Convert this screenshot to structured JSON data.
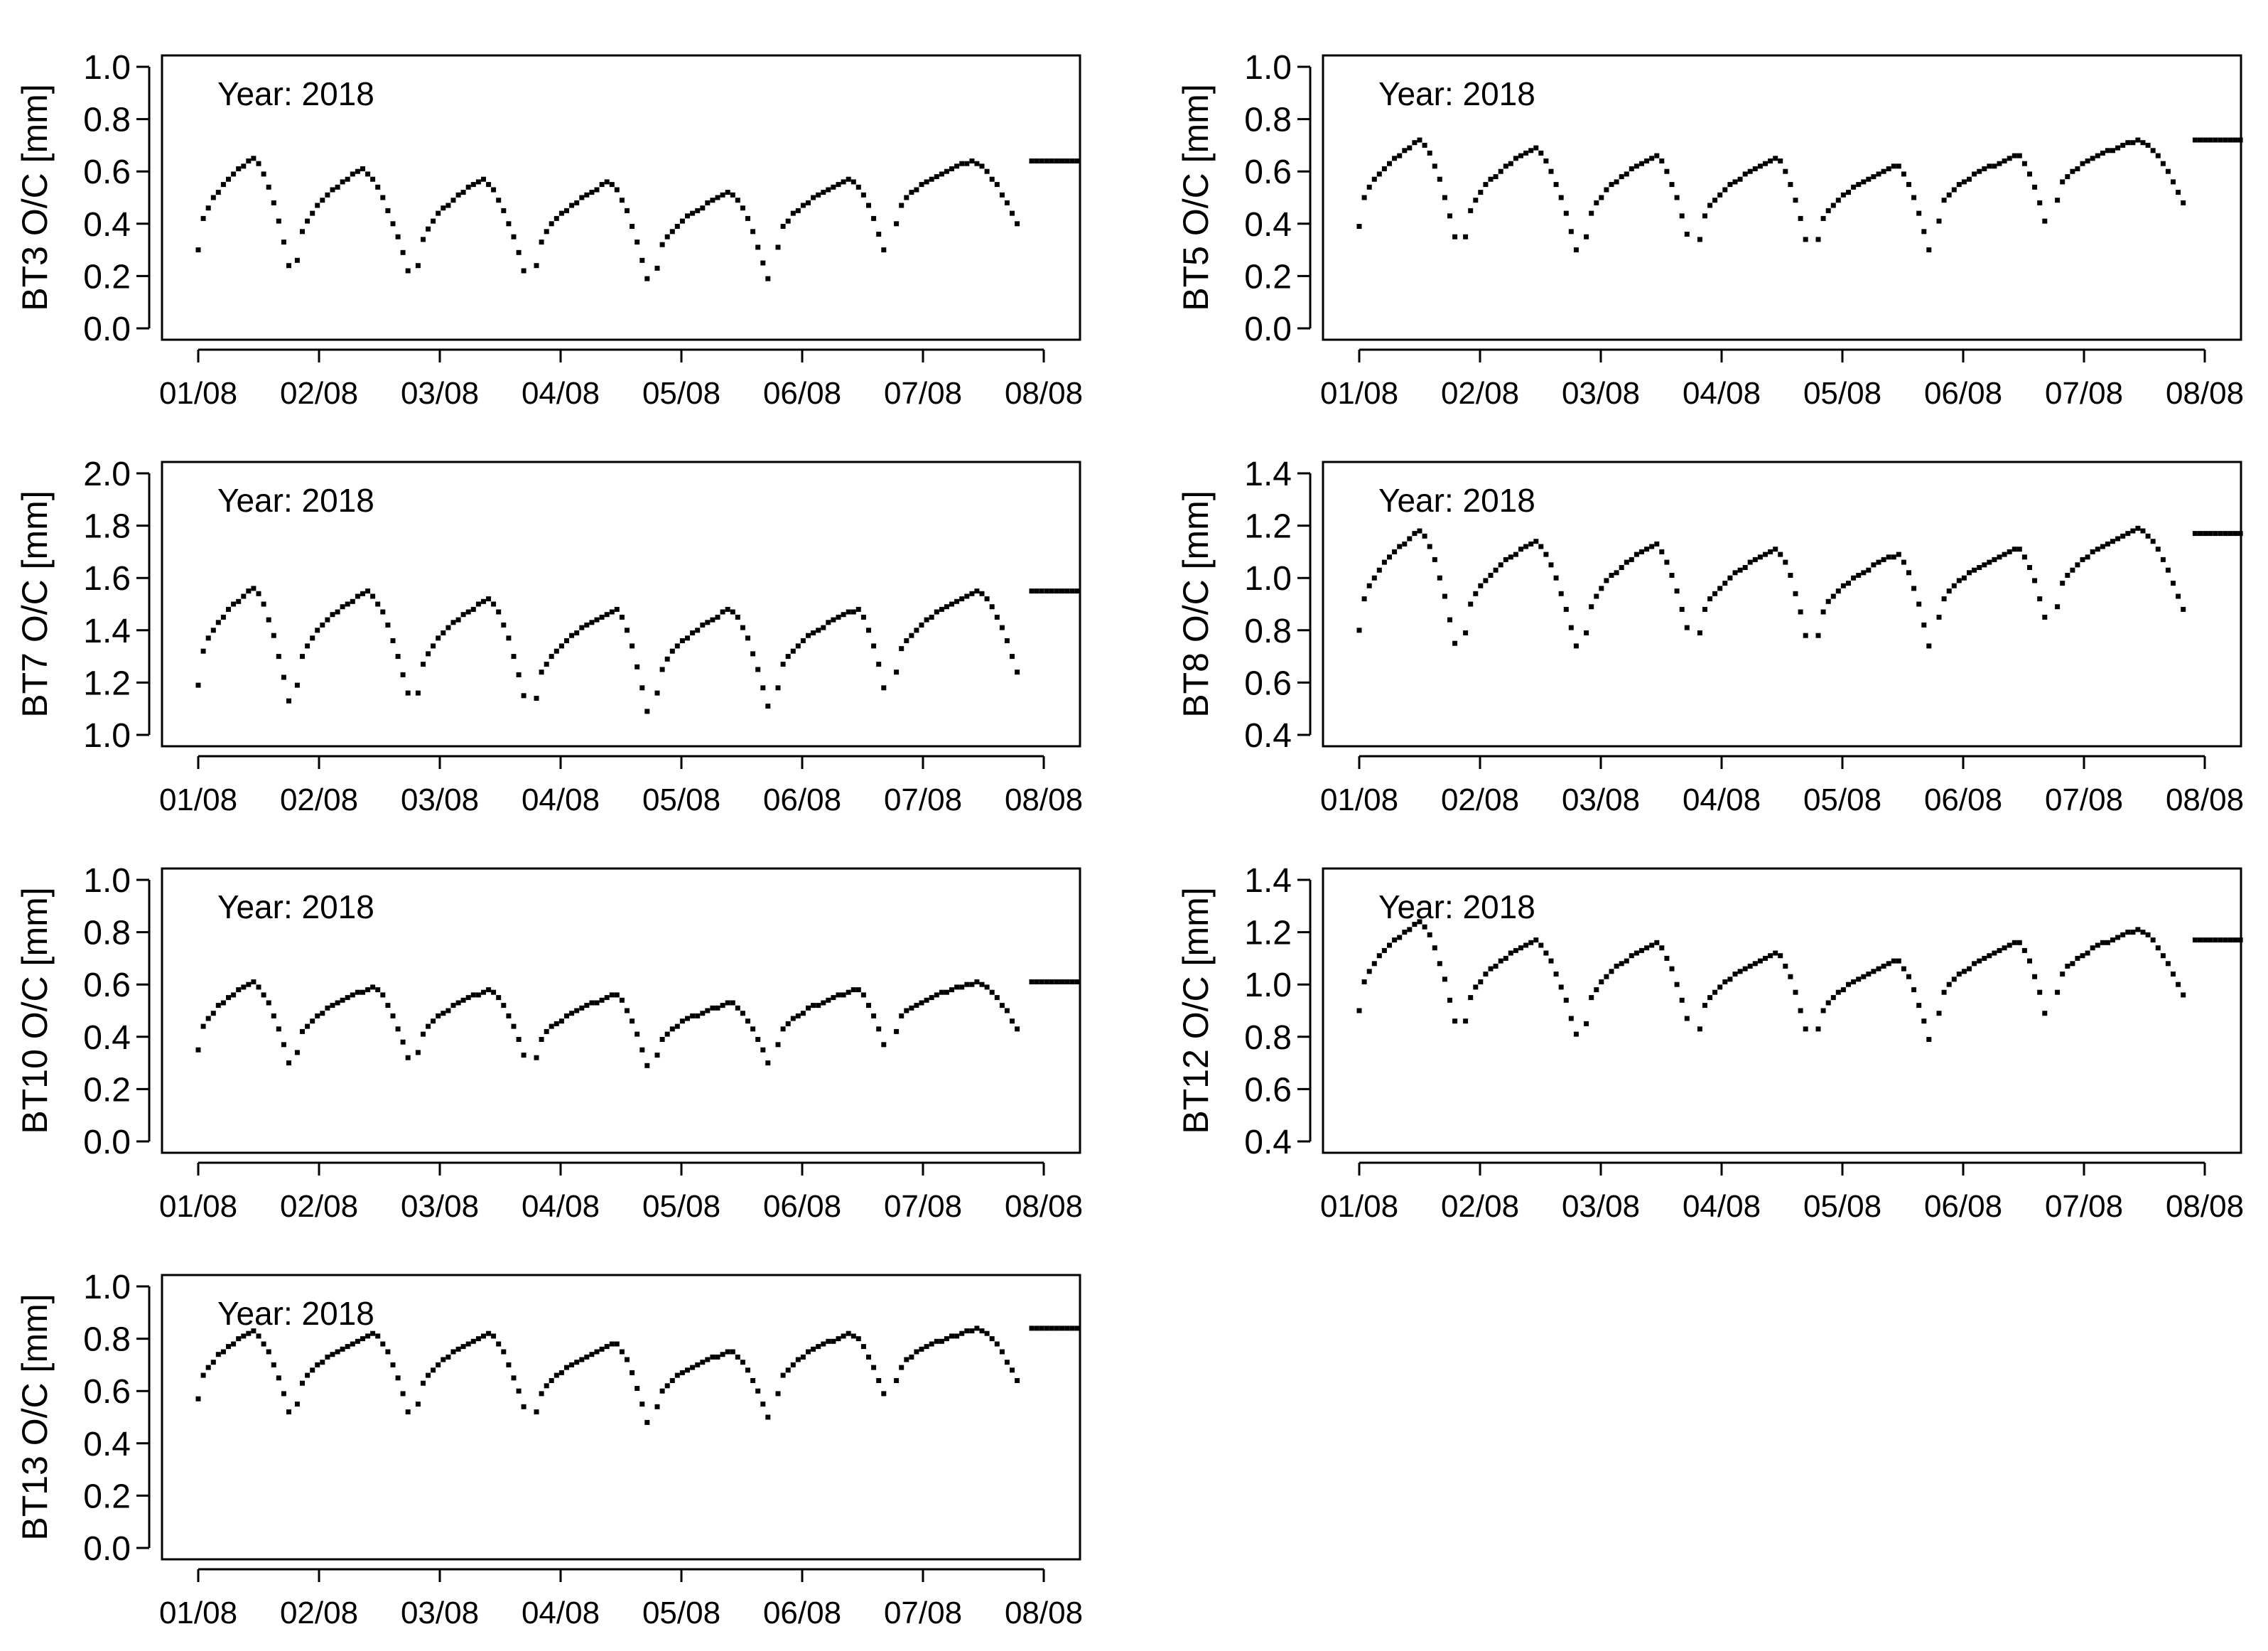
{
  "chart_data": [
    {
      "type": "scatter",
      "ylabel": "BT3 O/C [mm]",
      "annotation": "Year: 2018",
      "x_ticks": [
        "01/08",
        "02/08",
        "03/08",
        "04/08",
        "05/08",
        "06/08",
        "07/08",
        "08/08"
      ],
      "x_unit": "day",
      "x_range": [
        0.7,
        8.3
      ],
      "ylim": [
        0.0,
        1.0
      ],
      "y_ticks": [
        "0.0",
        "0.2",
        "0.4",
        "0.6",
        "0.8",
        "1.0"
      ],
      "grid": false,
      "series": [
        {
          "cycles": [
            {
              "start": 1.0,
              "peak_time": 1.45,
              "trough_time": 1.75,
              "peak": 0.65,
              "trough": 0.24
            },
            {
              "start": 1.82,
              "peak_time": 2.35,
              "trough_time": 2.75,
              "peak": 0.61,
              "trough": 0.2
            },
            {
              "start": 2.82,
              "peak_time": 3.35,
              "trough_time": 3.72,
              "peak": 0.57,
              "trough": 0.18
            },
            {
              "start": 3.8,
              "peak_time": 4.4,
              "trough_time": 4.72,
              "peak": 0.56,
              "trough": 0.18
            },
            {
              "start": 4.8,
              "peak_time": 5.4,
              "trough_time": 5.72,
              "peak": 0.52,
              "trough": 0.18
            },
            {
              "start": 5.8,
              "peak_time": 6.4,
              "trough_time": 6.7,
              "peak": 0.57,
              "trough": 0.26
            },
            {
              "start": 6.78,
              "peak_time": 7.4,
              "trough_time": 7.82,
              "peak": 0.64,
              "trough": 0.36
            },
            {
              "start": 7.9,
              "peak_time": 8.3,
              "trough_time": 8.3,
              "peak": 0.64,
              "trough": 0.64
            }
          ]
        }
      ]
    },
    {
      "type": "scatter",
      "ylabel": "BT5 O/C [mm]",
      "annotation": "Year: 2018",
      "x_ticks": [
        "01/08",
        "02/08",
        "03/08",
        "04/08",
        "05/08",
        "06/08",
        "07/08",
        "08/08"
      ],
      "x_unit": "day",
      "x_range": [
        0.7,
        8.3
      ],
      "ylim": [
        0.0,
        1.0
      ],
      "y_ticks": [
        "0.0",
        "0.2",
        "0.4",
        "0.6",
        "0.8",
        "1.0"
      ],
      "grid": false,
      "series": [
        {
          "cycles": [
            {
              "start": 1.0,
              "peak_time": 1.5,
              "trough_time": 1.8,
              "peak": 0.72,
              "trough": 0.33
            },
            {
              "start": 1.88,
              "peak_time": 2.45,
              "trough_time": 2.8,
              "peak": 0.69,
              "trough": 0.29
            },
            {
              "start": 2.88,
              "peak_time": 3.45,
              "trough_time": 3.75,
              "peak": 0.66,
              "trough": 0.29
            },
            {
              "start": 3.82,
              "peak_time": 4.45,
              "trough_time": 4.72,
              "peak": 0.65,
              "trough": 0.29
            },
            {
              "start": 4.8,
              "peak_time": 5.45,
              "trough_time": 5.72,
              "peak": 0.62,
              "trough": 0.29
            },
            {
              "start": 5.8,
              "peak_time": 6.45,
              "trough_time": 6.7,
              "peak": 0.66,
              "trough": 0.37
            },
            {
              "start": 6.78,
              "peak_time": 7.45,
              "trough_time": 7.85,
              "peak": 0.72,
              "trough": 0.45
            },
            {
              "start": 7.92,
              "peak_time": 8.3,
              "trough_time": 8.3,
              "peak": 0.72,
              "trough": 0.72
            }
          ]
        }
      ]
    },
    {
      "type": "scatter",
      "ylabel": "BT7 O/C [mm]",
      "annotation": "Year: 2018",
      "x_ticks": [
        "01/08",
        "02/08",
        "03/08",
        "04/08",
        "05/08",
        "06/08",
        "07/08",
        "08/08"
      ],
      "x_unit": "day",
      "x_range": [
        0.7,
        8.3
      ],
      "ylim": [
        1.0,
        2.0
      ],
      "y_ticks": [
        "1.0",
        "1.2",
        "1.4",
        "1.6",
        "1.8",
        "2.0"
      ],
      "grid": false,
      "series": [
        {
          "cycles": [
            {
              "start": 1.0,
              "peak_time": 1.45,
              "trough_time": 1.75,
              "peak": 1.56,
              "trough": 1.13
            },
            {
              "start": 1.82,
              "peak_time": 2.4,
              "trough_time": 2.75,
              "peak": 1.55,
              "trough": 1.13
            },
            {
              "start": 2.82,
              "peak_time": 3.4,
              "trough_time": 3.72,
              "peak": 1.52,
              "trough": 1.1
            },
            {
              "start": 3.8,
              "peak_time": 4.45,
              "trough_time": 4.72,
              "peak": 1.48,
              "trough": 1.08
            },
            {
              "start": 4.8,
              "peak_time": 5.4,
              "trough_time": 5.72,
              "peak": 1.48,
              "trough": 1.1
            },
            {
              "start": 5.8,
              "peak_time": 6.45,
              "trough_time": 6.7,
              "peak": 1.48,
              "trough": 1.13
            },
            {
              "start": 6.78,
              "peak_time": 7.45,
              "trough_time": 7.82,
              "peak": 1.55,
              "trough": 1.18
            },
            {
              "start": 7.9,
              "peak_time": 8.3,
              "trough_time": 8.3,
              "peak": 1.55,
              "trough": 1.55
            }
          ]
        }
      ]
    },
    {
      "type": "scatter",
      "ylabel": "BT8 O/C [mm]",
      "annotation": "Year: 2018",
      "x_ticks": [
        "01/08",
        "02/08",
        "03/08",
        "04/08",
        "05/08",
        "06/08",
        "07/08",
        "08/08"
      ],
      "x_unit": "day",
      "x_range": [
        0.7,
        8.3
      ],
      "ylim": [
        0.4,
        1.4
      ],
      "y_ticks": [
        "0.4",
        "0.6",
        "0.8",
        "1.0",
        "1.2",
        "1.4"
      ],
      "grid": false,
      "series": [
        {
          "cycles": [
            {
              "start": 1.0,
              "peak_time": 1.5,
              "trough_time": 1.8,
              "peak": 1.18,
              "trough": 0.73
            },
            {
              "start": 1.88,
              "peak_time": 2.45,
              "trough_time": 2.8,
              "peak": 1.14,
              "trough": 0.73
            },
            {
              "start": 2.88,
              "peak_time": 3.45,
              "trough_time": 3.75,
              "peak": 1.13,
              "trough": 0.73
            },
            {
              "start": 3.82,
              "peak_time": 4.45,
              "trough_time": 4.72,
              "peak": 1.11,
              "trough": 0.73
            },
            {
              "start": 4.8,
              "peak_time": 5.45,
              "trough_time": 5.72,
              "peak": 1.09,
              "trough": 0.73
            },
            {
              "start": 5.8,
              "peak_time": 6.45,
              "trough_time": 6.7,
              "peak": 1.11,
              "trough": 0.8
            },
            {
              "start": 6.78,
              "peak_time": 7.45,
              "trough_time": 7.85,
              "peak": 1.19,
              "trough": 0.84
            },
            {
              "start": 7.92,
              "peak_time": 8.3,
              "trough_time": 8.3,
              "peak": 1.17,
              "trough": 1.17
            }
          ]
        }
      ]
    },
    {
      "type": "scatter",
      "ylabel": "BT10 O/C [mm]",
      "annotation": "Year: 2018",
      "x_ticks": [
        "01/08",
        "02/08",
        "03/08",
        "04/08",
        "05/08",
        "06/08",
        "07/08",
        "08/08"
      ],
      "x_unit": "day",
      "x_range": [
        0.7,
        8.3
      ],
      "ylim": [
        0.0,
        1.0
      ],
      "y_ticks": [
        "0.0",
        "0.2",
        "0.4",
        "0.6",
        "0.8",
        "1.0"
      ],
      "grid": false,
      "series": [
        {
          "cycles": [
            {
              "start": 1.0,
              "peak_time": 1.45,
              "trough_time": 1.75,
              "peak": 0.61,
              "trough": 0.3
            },
            {
              "start": 1.82,
              "peak_time": 2.45,
              "trough_time": 2.75,
              "peak": 0.59,
              "trough": 0.3
            },
            {
              "start": 2.82,
              "peak_time": 3.4,
              "trough_time": 3.72,
              "peak": 0.58,
              "trough": 0.3
            },
            {
              "start": 3.8,
              "peak_time": 4.45,
              "trough_time": 4.72,
              "peak": 0.56,
              "trough": 0.28
            },
            {
              "start": 4.8,
              "peak_time": 5.4,
              "trough_time": 5.72,
              "peak": 0.53,
              "trough": 0.3
            },
            {
              "start": 5.8,
              "peak_time": 6.45,
              "trough_time": 6.7,
              "peak": 0.58,
              "trough": 0.33
            },
            {
              "start": 6.78,
              "peak_time": 7.45,
              "trough_time": 7.82,
              "peak": 0.61,
              "trough": 0.39
            },
            {
              "start": 7.9,
              "peak_time": 8.3,
              "trough_time": 8.3,
              "peak": 0.61,
              "trough": 0.61
            }
          ]
        }
      ]
    },
    {
      "type": "scatter",
      "ylabel": "BT12 O/C [mm]",
      "annotation": "Year: 2018",
      "x_ticks": [
        "01/08",
        "02/08",
        "03/08",
        "04/08",
        "05/08",
        "06/08",
        "07/08",
        "08/08"
      ],
      "x_unit": "day",
      "x_range": [
        0.7,
        8.3
      ],
      "ylim": [
        0.4,
        1.4
      ],
      "y_ticks": [
        "0.4",
        "0.6",
        "0.8",
        "1.0",
        "1.2",
        "1.4"
      ],
      "grid": false,
      "series": [
        {
          "cycles": [
            {
              "start": 1.0,
              "peak_time": 1.5,
              "trough_time": 1.8,
              "peak": 1.24,
              "trough": 0.84
            },
            {
              "start": 1.88,
              "peak_time": 2.45,
              "trough_time": 2.8,
              "peak": 1.17,
              "trough": 0.8
            },
            {
              "start": 2.88,
              "peak_time": 3.45,
              "trough_time": 3.75,
              "peak": 1.16,
              "trough": 0.8
            },
            {
              "start": 3.82,
              "peak_time": 4.45,
              "trough_time": 4.72,
              "peak": 1.12,
              "trough": 0.78
            },
            {
              "start": 4.8,
              "peak_time": 5.45,
              "trough_time": 5.72,
              "peak": 1.09,
              "trough": 0.78
            },
            {
              "start": 5.8,
              "peak_time": 6.45,
              "trough_time": 6.7,
              "peak": 1.16,
              "trough": 0.84
            },
            {
              "start": 6.78,
              "peak_time": 7.45,
              "trough_time": 7.85,
              "peak": 1.21,
              "trough": 0.93
            },
            {
              "start": 7.92,
              "peak_time": 8.3,
              "trough_time": 8.3,
              "peak": 1.17,
              "trough": 1.17
            }
          ]
        }
      ]
    },
    {
      "type": "scatter",
      "ylabel": "BT13 O/C [mm]",
      "annotation": "Year: 2018",
      "x_ticks": [
        "01/08",
        "02/08",
        "03/08",
        "04/08",
        "05/08",
        "06/08",
        "07/08",
        "08/08"
      ],
      "x_unit": "day",
      "x_range": [
        0.7,
        8.3
      ],
      "ylim": [
        0.0,
        1.0
      ],
      "y_ticks": [
        "0.0",
        "0.2",
        "0.4",
        "0.6",
        "0.8",
        "1.0"
      ],
      "grid": false,
      "series": [
        {
          "cycles": [
            {
              "start": 1.0,
              "peak_time": 1.45,
              "trough_time": 1.75,
              "peak": 0.83,
              "trough": 0.52
            },
            {
              "start": 1.82,
              "peak_time": 2.45,
              "trough_time": 2.75,
              "peak": 0.82,
              "trough": 0.5
            },
            {
              "start": 2.82,
              "peak_time": 3.4,
              "trough_time": 3.72,
              "peak": 0.82,
              "trough": 0.5
            },
            {
              "start": 3.8,
              "peak_time": 4.45,
              "trough_time": 4.72,
              "peak": 0.78,
              "trough": 0.47
            },
            {
              "start": 4.8,
              "peak_time": 5.4,
              "trough_time": 5.72,
              "peak": 0.75,
              "trough": 0.5
            },
            {
              "start": 5.8,
              "peak_time": 6.4,
              "trough_time": 6.7,
              "peak": 0.82,
              "trough": 0.55
            },
            {
              "start": 6.78,
              "peak_time": 7.45,
              "trough_time": 7.82,
              "peak": 0.84,
              "trough": 0.6
            },
            {
              "start": 7.9,
              "peak_time": 8.3,
              "trough_time": 8.3,
              "peak": 0.84,
              "trough": 0.84
            }
          ]
        }
      ]
    }
  ],
  "colors": {
    "points": "#000000",
    "axes": "#000000",
    "background": "#ffffff"
  }
}
